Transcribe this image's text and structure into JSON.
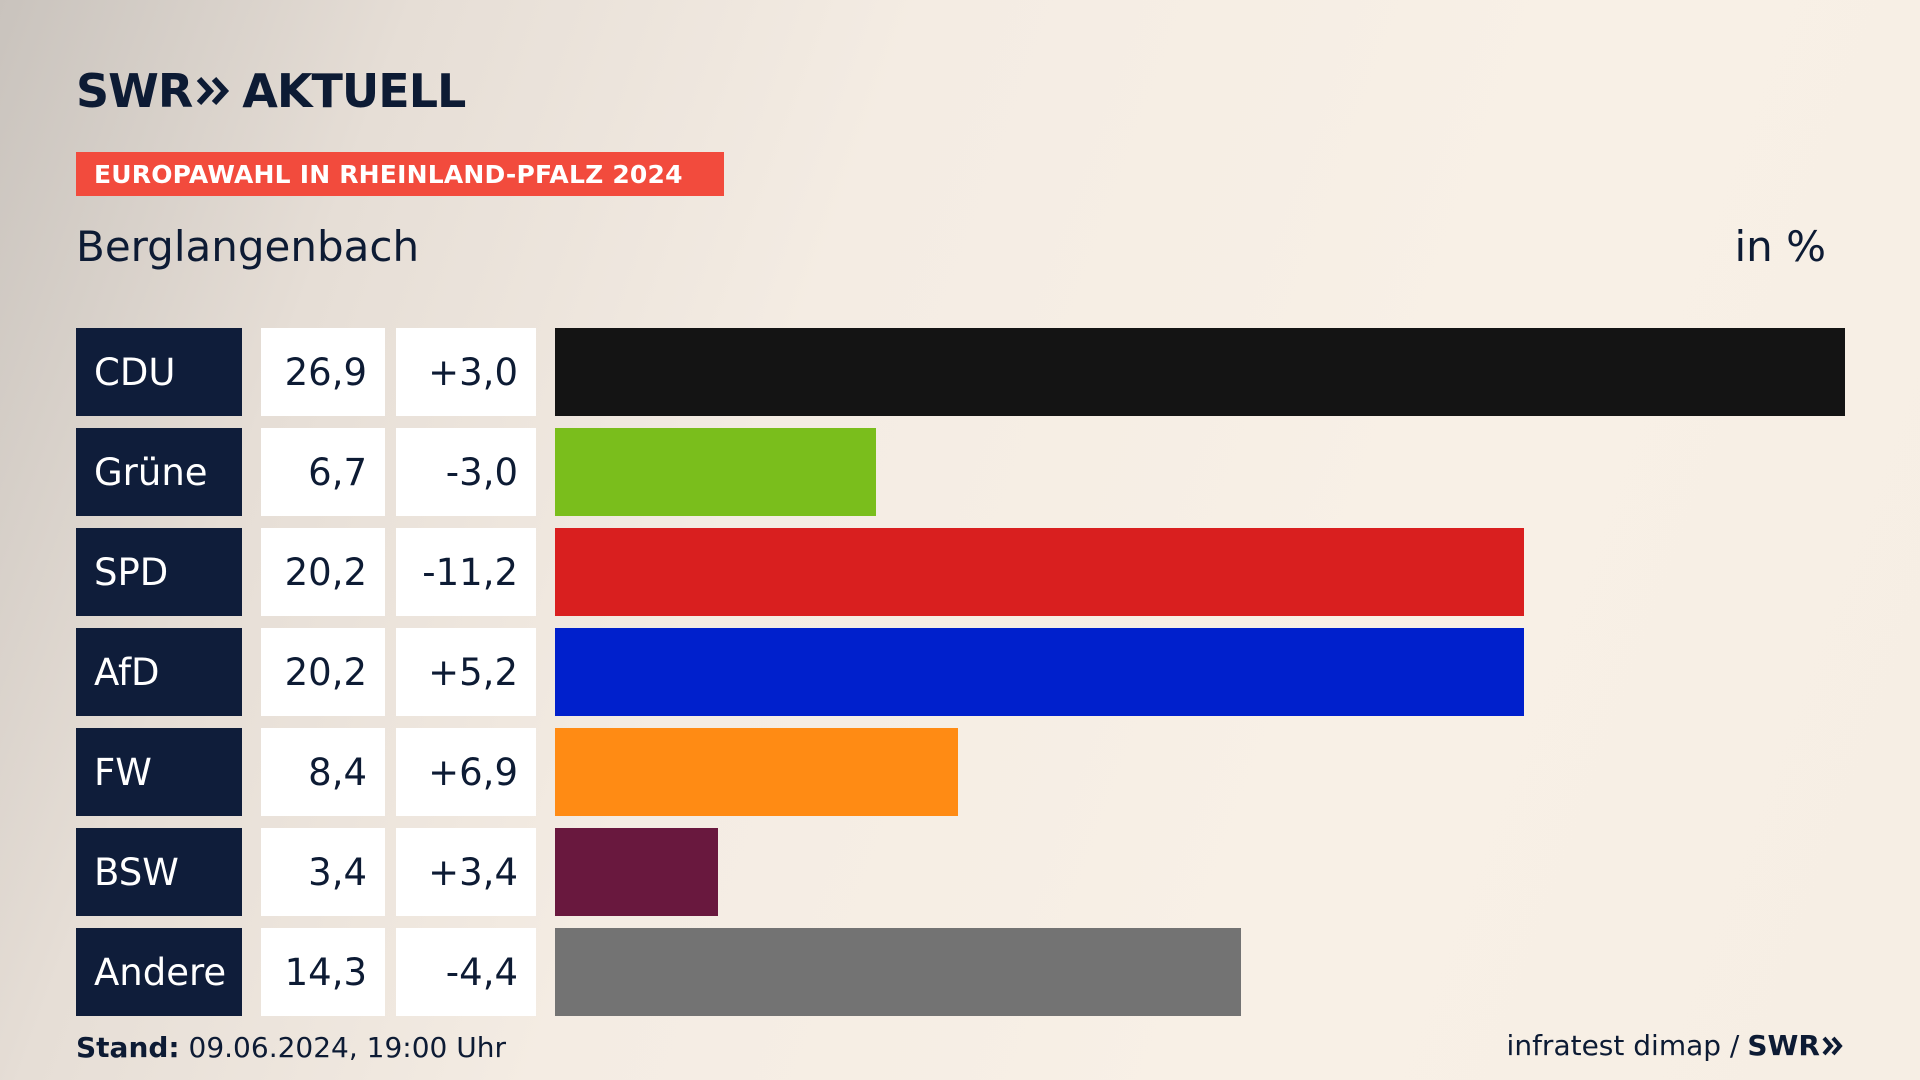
{
  "header": {
    "logo_left": "SWR",
    "logo_right": "AKTUELL",
    "badge": "EUROPAWAHL IN RHEINLAND-PFALZ 2024",
    "region": "Berglangenbach",
    "unit": "in %"
  },
  "chart_data": {
    "type": "bar",
    "orientation": "horizontal",
    "categories": [
      "CDU",
      "Grüne",
      "SPD",
      "AfD",
      "FW",
      "BSW",
      "Andere"
    ],
    "values": [
      26.9,
      6.7,
      20.2,
      20.2,
      8.4,
      3.4,
      14.3
    ],
    "values_label": [
      "26,9",
      "6,7",
      "20,2",
      "20,2",
      "8,4",
      "3,4",
      "14,3"
    ],
    "changes_label": [
      "+3,0",
      "-3,0",
      "-11,2",
      "+5,2",
      "+6,9",
      "+3,4",
      "-4,4"
    ],
    "colors": [
      "#141414",
      "#7abe1c",
      "#d91f1f",
      "#0020cc",
      "#ff8b14",
      "#69183e",
      "#737373"
    ],
    "unit": "in %",
    "xlim": [
      0,
      26.9
    ]
  },
  "footer": {
    "stand_label": "Stand:",
    "stand_value": "09.06.2024, 19:00 Uhr",
    "source": "infratest dimap /",
    "source_logo": "SWR"
  }
}
